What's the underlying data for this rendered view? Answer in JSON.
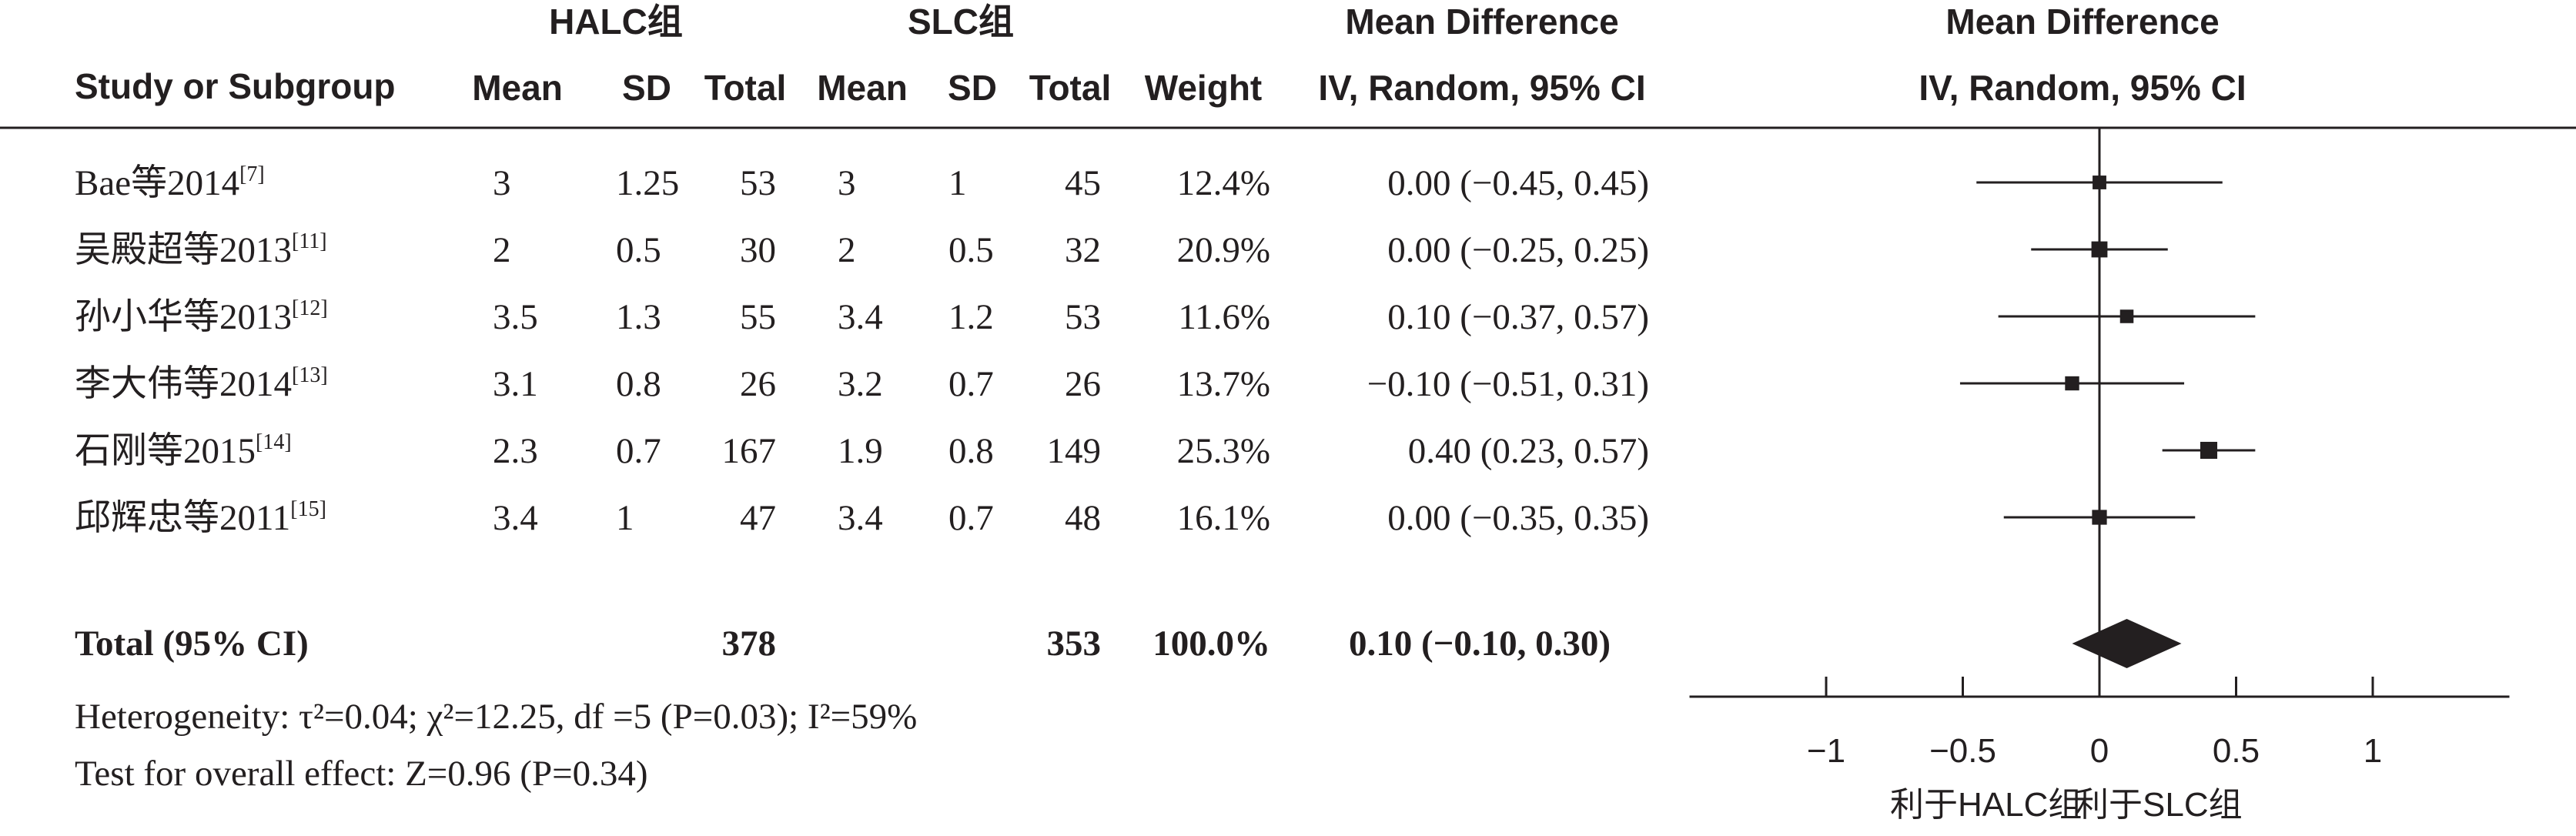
{
  "headers": {
    "exp_group": "HALC组",
    "ctl_group": "SLC组",
    "study": "Study or Subgroup",
    "mean": "Mean",
    "sd": "SD",
    "total": "Total",
    "weight": "Weight",
    "md_title": "Mean Difference",
    "md_method": "IV, Random, 95% CI",
    "plot_title": "Mean Difference",
    "plot_method": "IV, Random, 95% CI"
  },
  "studies": [
    {
      "name": "Bae等2014",
      "ref": "[7]",
      "exp_mean": "3",
      "exp_sd": "1.25",
      "exp_total": "53",
      "ctl_mean": "3",
      "ctl_sd": "1",
      "ctl_total": "45",
      "weight": "12.4%",
      "ci_text": "0.00 (−0.45, 0.45)"
    },
    {
      "name": "吴殿超等2013",
      "ref": "[11]",
      "exp_mean": "2",
      "exp_sd": "0.5",
      "exp_total": "30",
      "ctl_mean": "2",
      "ctl_sd": "0.5",
      "ctl_total": "32",
      "weight": "20.9%",
      "ci_text": "0.00 (−0.25, 0.25)"
    },
    {
      "name": "孙小华等2013",
      "ref": "[12]",
      "exp_mean": "3.5",
      "exp_sd": "1.3",
      "exp_total": "55",
      "ctl_mean": "3.4",
      "ctl_sd": "1.2",
      "ctl_total": "53",
      "weight": "11.6%",
      "ci_text": "0.10 (−0.37, 0.57)"
    },
    {
      "name": "李大伟等2014",
      "ref": "[13]",
      "exp_mean": "3.1",
      "exp_sd": "0.8",
      "exp_total": "26",
      "ctl_mean": "3.2",
      "ctl_sd": "0.7",
      "ctl_total": "26",
      "weight": "13.7%",
      "ci_text": "−0.10 (−0.51, 0.31)"
    },
    {
      "name": "石刚等2015",
      "ref": "[14]",
      "exp_mean": "2.3",
      "exp_sd": "0.7",
      "exp_total": "167",
      "ctl_mean": "1.9",
      "ctl_sd": "0.8",
      "ctl_total": "149",
      "weight": "25.3%",
      "ci_text": "0.40 (0.23, 0.57)"
    },
    {
      "name": "邱辉忠等2011",
      "ref": "[15]",
      "exp_mean": "3.4",
      "exp_sd": "1",
      "exp_total": "47",
      "ctl_mean": "3.4",
      "ctl_sd": "0.7",
      "ctl_total": "48",
      "weight": "16.1%",
      "ci_text": "0.00 (−0.35, 0.35)"
    }
  ],
  "total": {
    "label": "Total (95% CI)",
    "exp_total": "378",
    "ctl_total": "353",
    "weight": "100.0%",
    "ci_text": "0.10 (−0.10, 0.30)"
  },
  "footer": {
    "heterogeneity": "Heterogeneity: τ²=0.04; χ²=12.25, df =5 (P=0.03); I²=59%",
    "overall": "Test for overall effect: Z=0.96 (P=0.34)"
  },
  "axis": {
    "favours_left": "利于HALC组",
    "favours_right": "利于SLC组"
  },
  "chart_data": {
    "type": "forest",
    "x_ticks": [
      -1,
      -0.5,
      0,
      0.5,
      1
    ],
    "x_tick_labels": [
      "−1",
      "−0.5",
      "0",
      "0.5",
      "1"
    ],
    "xlim": [
      -1.5,
      1.5
    ],
    "points": [
      {
        "md": 0.0,
        "lo": -0.45,
        "hi": 0.45,
        "weight": 12.4
      },
      {
        "md": 0.0,
        "lo": -0.25,
        "hi": 0.25,
        "weight": 20.9
      },
      {
        "md": 0.1,
        "lo": -0.37,
        "hi": 0.57,
        "weight": 11.6
      },
      {
        "md": -0.1,
        "lo": -0.51,
        "hi": 0.31,
        "weight": 13.7
      },
      {
        "md": 0.4,
        "lo": 0.23,
        "hi": 0.57,
        "weight": 25.3
      },
      {
        "md": 0.0,
        "lo": -0.35,
        "hi": 0.35,
        "weight": 16.1
      }
    ],
    "pooled": {
      "md": 0.1,
      "lo": -0.1,
      "hi": 0.3
    }
  }
}
